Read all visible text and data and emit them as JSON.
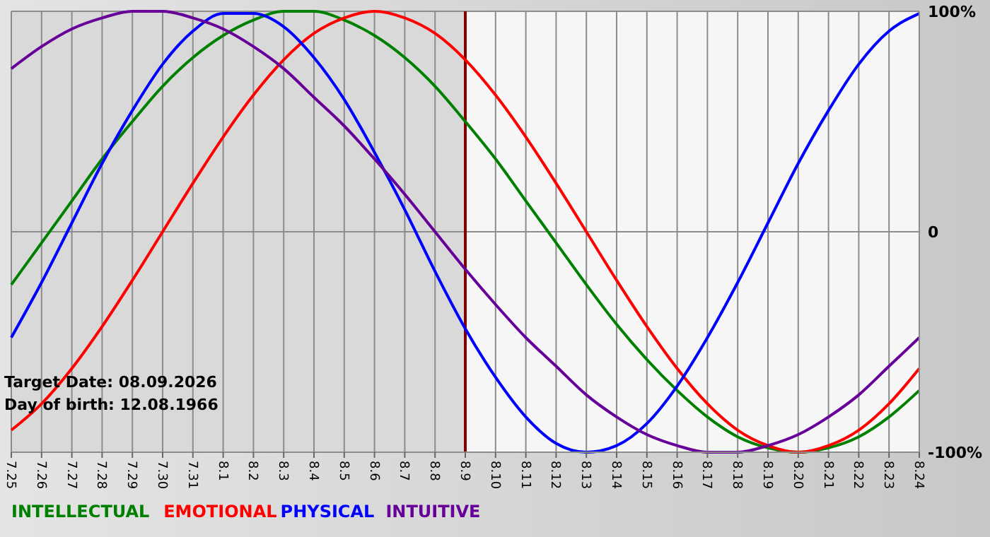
{
  "chart_data": {
    "type": "line",
    "categories": [
      "7.25",
      "7.26",
      "7.27",
      "7.28",
      "7.29",
      "7.30",
      "7.31",
      "8.1",
      "8.2",
      "8.3",
      "8.4",
      "8.5",
      "8.6",
      "8.7",
      "8.8",
      "8.9",
      "8.10",
      "8.11",
      "8.12",
      "8.13",
      "8.14",
      "8.15",
      "8.16",
      "8.17",
      "8.18",
      "8.19",
      "8.20",
      "8.21",
      "8.22",
      "8.23",
      "8.24"
    ],
    "series": [
      {
        "name": "INTELLECTUAL",
        "color": "#008000",
        "values": [
          -24,
          -5,
          14,
          33,
          50,
          66,
          79,
          89,
          96,
          100,
          100,
          96,
          89,
          79,
          66,
          50,
          33,
          14,
          -5,
          -24,
          -42,
          -58,
          -72,
          -84,
          -93,
          -98,
          -100,
          -98,
          -93,
          -84,
          -72
        ]
      },
      {
        "name": "EMOTIONAL",
        "color": "#ff0000",
        "values": [
          -90,
          -78,
          -62,
          -43,
          -22,
          0,
          22,
          43,
          62,
          78,
          90,
          97,
          100,
          97,
          90,
          78,
          62,
          43,
          22,
          0,
          -22,
          -43,
          -62,
          -78,
          -90,
          -97,
          -100,
          -97,
          -90,
          -78,
          -62
        ]
      },
      {
        "name": "PHYSICAL",
        "color": "#0000ff",
        "values": [
          -48,
          -23,
          4,
          31,
          55,
          76,
          91,
          99,
          99,
          93,
          79,
          60,
          36,
          10,
          -18,
          -44,
          -66,
          -84,
          -96,
          -100,
          -97,
          -87,
          -70,
          -48,
          -23,
          4,
          31,
          55,
          76,
          91,
          99
        ]
      },
      {
        "name": "INTUITIVE",
        "color": "#660099",
        "values": [
          74,
          84,
          92,
          97,
          100,
          100,
          97,
          92,
          84,
          74,
          61,
          48,
          33,
          17,
          0,
          -17,
          -33,
          -48,
          -61,
          -74,
          -84,
          -92,
          -97,
          -100,
          -100,
          -97,
          -92,
          -84,
          -74,
          -61,
          -48
        ]
      }
    ],
    "ylim": [
      -100,
      100
    ],
    "yticks": [
      {
        "value": 100,
        "label": "100%"
      },
      0,
      {
        "value": -100,
        "label": "-100%"
      }
    ],
    "grid": true,
    "legend": "bottom",
    "ref_lines": [
      {
        "axis": "x",
        "value": "8.9",
        "color": "#800000"
      }
    ],
    "bands": [
      {
        "axis": "x",
        "from": "7.25",
        "to": "8.9",
        "color": "#d9d9d9"
      }
    ],
    "annotations": [
      "Target Date: 08.09.2026",
      "Day of birth: 12.08.1966"
    ]
  }
}
